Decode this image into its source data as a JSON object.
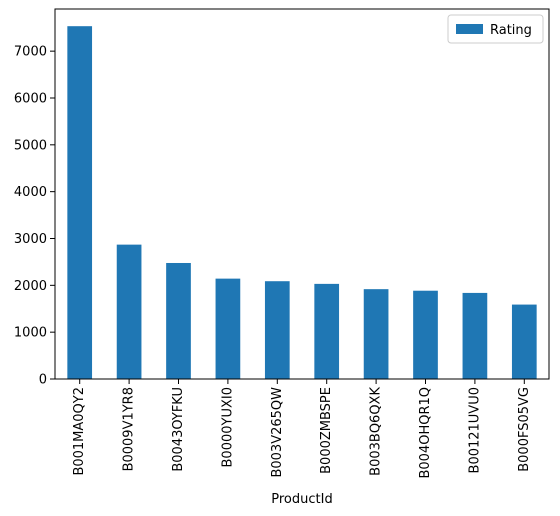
{
  "chart_data": {
    "type": "bar",
    "title": "",
    "xlabel": "ProductId",
    "ylabel": "",
    "categories": [
      "B001MA0QY2",
      "B0009V1YR8",
      "B0043OYFKU",
      "B0000YUXI0",
      "B003V265QW",
      "B000ZMBSPE",
      "B003BQ6QXK",
      "B004OHQR1Q",
      "B00121UVU0",
      "B000FS05VG"
    ],
    "series": [
      {
        "name": "Rating",
        "values": [
          7533,
          2869,
          2477,
          2143,
          2088,
          2031,
          1918,
          1885,
          1838,
          1589
        ]
      }
    ],
    "ylim": [
      0,
      7900
    ],
    "yticks": [
      0,
      1000,
      2000,
      3000,
      4000,
      5000,
      6000,
      7000
    ],
    "grid": false,
    "legend": "top-right",
    "colors": {
      "bar": "#1f77b4",
      "axis": "#000000"
    }
  }
}
